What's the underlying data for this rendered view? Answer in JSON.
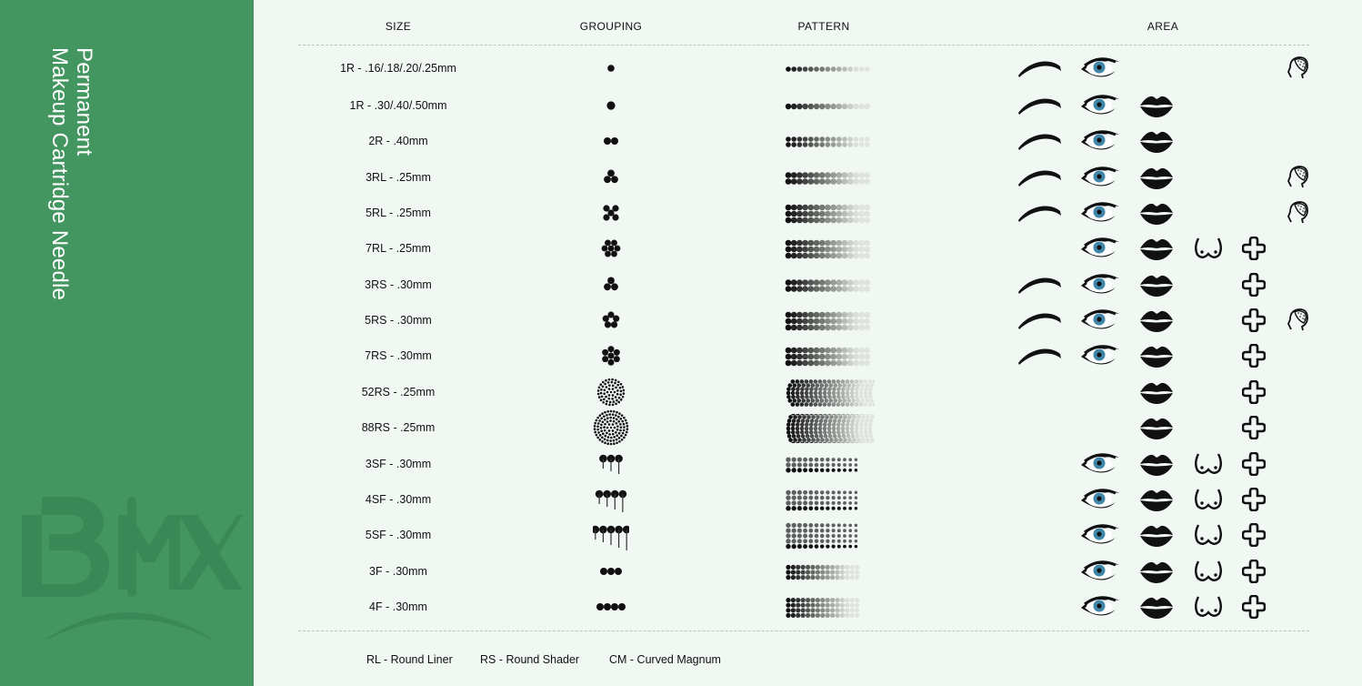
{
  "sidebar": {
    "title_line1": "Permanent",
    "title_line2": "Makeup Cartridge Needle",
    "logo_text": "BMX",
    "color": "#449660",
    "logo_color": "#3a8856"
  },
  "headers": {
    "size": "SIZE",
    "grouping": "GROUPING",
    "pattern": "PATTERN",
    "area": "AREA"
  },
  "area_icons": [
    "eyebrow-icon",
    "eye-icon",
    "lips-icon",
    "breast-icon",
    "areola-cross-icon",
    "scalp-head-icon"
  ],
  "rows": [
    {
      "size": "1R - .16/.18/.20/.25mm",
      "areas": [
        "eyebrow",
        "eye",
        "scalp"
      ]
    },
    {
      "size": "1R - .30/.40/.50mm",
      "areas": [
        "eyebrow",
        "eye",
        "lips"
      ]
    },
    {
      "size": "2R - .40mm",
      "areas": [
        "eyebrow",
        "eye",
        "lips"
      ]
    },
    {
      "size": "3RL - .25mm",
      "areas": [
        "eyebrow",
        "eye",
        "lips",
        "scalp"
      ]
    },
    {
      "size": "5RL - .25mm",
      "areas": [
        "eyebrow",
        "eye",
        "lips",
        "scalp"
      ]
    },
    {
      "size": "7RL - .25mm",
      "areas": [
        "eye",
        "lips",
        "breast",
        "cross"
      ]
    },
    {
      "size": "3RS - .30mm",
      "areas": [
        "eyebrow",
        "eye",
        "lips",
        "cross"
      ]
    },
    {
      "size": "5RS - .30mm",
      "areas": [
        "eyebrow",
        "eye",
        "lips",
        "cross",
        "scalp"
      ]
    },
    {
      "size": "7RS - .30mm",
      "areas": [
        "eyebrow",
        "eye",
        "lips",
        "cross"
      ]
    },
    {
      "size": "52RS - .25mm",
      "areas": [
        "lips",
        "cross"
      ]
    },
    {
      "size": "88RS - .25mm",
      "areas": [
        "lips",
        "cross"
      ]
    },
    {
      "size": "3SF - .30mm",
      "areas": [
        "eye",
        "lips",
        "breast",
        "cross"
      ]
    },
    {
      "size": "4SF - .30mm",
      "areas": [
        "eye",
        "lips",
        "breast",
        "cross"
      ]
    },
    {
      "size": "5SF - .30mm",
      "areas": [
        "eye",
        "lips",
        "breast",
        "cross"
      ]
    },
    {
      "size": "3F - .30mm",
      "areas": [
        "eye",
        "lips",
        "breast",
        "cross"
      ]
    },
    {
      "size": "4F - .30mm",
      "areas": [
        "eye",
        "lips",
        "breast",
        "cross"
      ]
    }
  ],
  "legend": [
    "RL - Round Liner",
    "RS - Round Shader",
    "CM - Curved Magnum"
  ],
  "colors": {
    "background": "#f1f7f2",
    "iris": "#3f86a8"
  }
}
